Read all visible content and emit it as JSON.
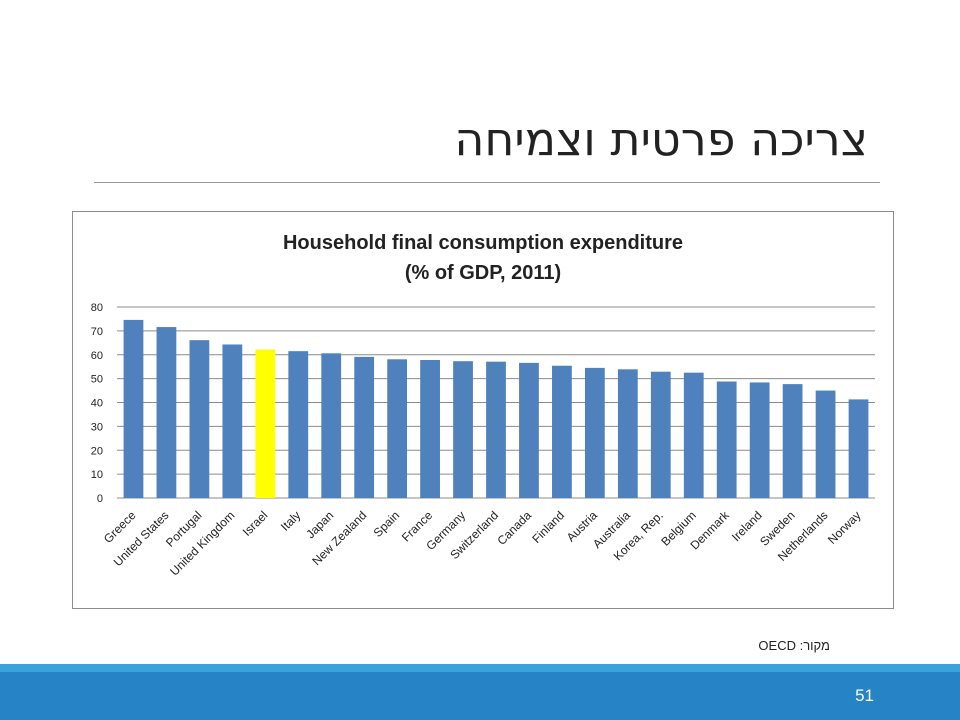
{
  "slide": {
    "title": "צריכה פרטית וצמיחה",
    "source": "מקור: OECD",
    "page_number": "51"
  },
  "colors": {
    "bar": "#4f81bd",
    "highlight": "#ffff00",
    "footer": "#2583c6",
    "footer_strip": "#3aa2dd"
  },
  "chart_data": {
    "type": "bar",
    "title": "Household final consumption expenditure",
    "subtitle": "(% of GDP, 2011)",
    "xlabel": "",
    "ylabel": "",
    "ylim": [
      0,
      80
    ],
    "yticks": [
      0,
      10,
      20,
      30,
      40,
      50,
      60,
      70,
      80
    ],
    "grid": true,
    "legend": "none",
    "highlight_category": "Israel",
    "categories": [
      "Greece",
      "United States",
      "Portugal",
      "United Kingdom",
      "Israel",
      "Italy",
      "Japan",
      "New Zealand",
      "Spain",
      "France",
      "Germany",
      "Switzerland",
      "Canada",
      "Finland",
      "Austria",
      "Australia",
      "Korea, Rep.",
      "Belgium",
      "Denmark",
      "Ireland",
      "Sweden",
      "Netherlands",
      "Norway"
    ],
    "values": [
      74.6,
      71.6,
      66.1,
      64.3,
      62.2,
      61.5,
      60.6,
      59.1,
      58.1,
      57.8,
      57.3,
      57.1,
      56.6,
      55.4,
      54.5,
      53.9,
      52.9,
      52.5,
      48.8,
      48.4,
      47.7,
      45.0,
      41.3
    ]
  }
}
